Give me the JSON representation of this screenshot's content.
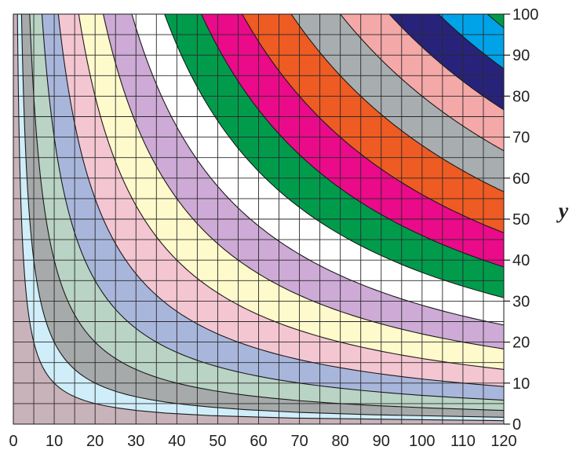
{
  "chart_data": {
    "type": "contour",
    "function": "z = x * y",
    "x": {
      "range": [
        0,
        120
      ],
      "ticks": [
        0,
        10,
        20,
        30,
        40,
        50,
        60,
        70,
        80,
        90,
        100,
        110,
        120
      ],
      "label": ""
    },
    "y": {
      "range": [
        0,
        100
      ],
      "ticks": [
        0,
        10,
        20,
        30,
        40,
        50,
        60,
        70,
        80,
        90,
        100
      ],
      "label": "y",
      "side": "right"
    },
    "grid": true,
    "grid_spacing": 5,
    "levels": [
      0,
      100,
      200,
      400,
      700,
      1100,
      1600,
      2200,
      2900,
      3700,
      4600,
      5600,
      6800,
      8000,
      9200,
      10400,
      11600,
      12000
    ],
    "band_colors": [
      "#c9b3bb",
      "#cfeefa",
      "#a7aaaa",
      "#b9d3c4",
      "#a9b6dc",
      "#f4c6d2",
      "#fffacc",
      "#ceaad6",
      "#ffffff",
      "#009c4c",
      "#ea0a8a",
      "#ee5b23",
      "#a8aeb0",
      "#f4a8a8",
      "#28237a",
      "#00a3e7",
      "#009c4c"
    ],
    "line_color": "#1a1a1a",
    "grid_color": "#2a2a2a"
  }
}
